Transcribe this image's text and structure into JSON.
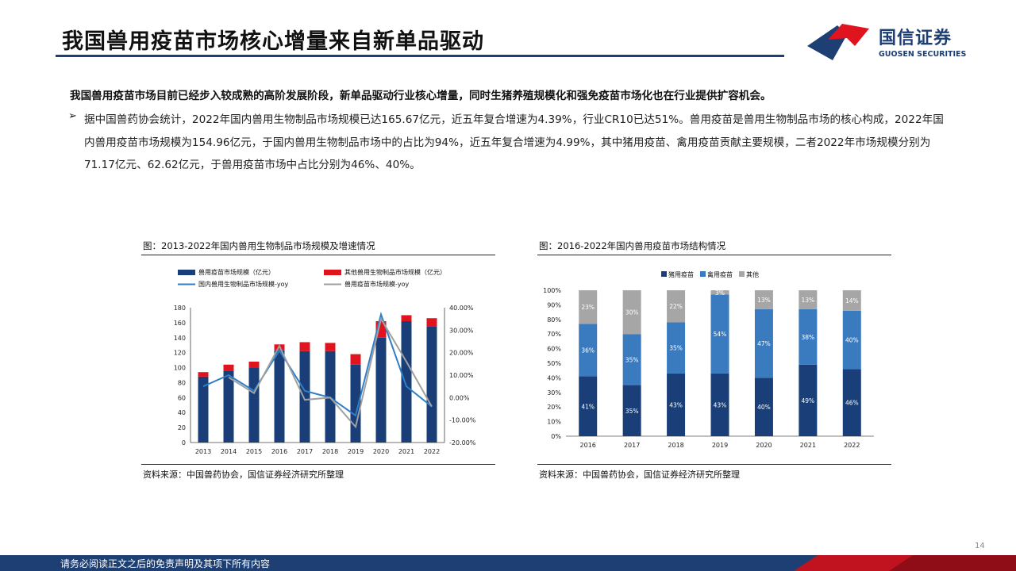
{
  "header": {
    "title": "我国兽用疫苗市场核心增量来自新单品驱动",
    "logo_cn": "国信证券",
    "logo_en": "GUOSEN SECURITIES"
  },
  "body": {
    "summary": "我国兽用疫苗市场目前已经步入较成熟的高阶发展阶段，新单品驱动行业核心增量，同时生猪养殖规模化和强免疫苗市场化也在行业提供扩容机会。",
    "bullet_mark": "➢",
    "bullet": "据中国兽药协会统计，2022年国内兽用生物制品市场规模已达165.67亿元，近五年复合增速为4.39%，行业CR10已达51%。兽用疫苗是兽用生物制品市场的核心构成，2022年国内兽用疫苗市场规模为154.96亿元，于国内兽用生物制品市场中的占比为94%，近五年复合增速为4.99%，其中猪用疫苗、禽用疫苗贡献主要规模，二者2022年市场规模分别为71.17亿元、62.62亿元，于兽用疫苗市场中占比分别为46%、40%。"
  },
  "figures": {
    "left_caption": "图：2013-2022年国内兽用生物制品市场规模及增速情况",
    "right_caption": "图：2016-2022年国内兽用疫苗市场结构情况",
    "left_source": "资料来源：中国兽药协会，国信证券经济研究所整理",
    "right_source": "资料来源：中国兽药协会，国信证券经济研究所整理"
  },
  "chart_data": [
    {
      "type": "bar",
      "stacked": true,
      "categories": [
        "2013",
        "2014",
        "2015",
        "2016",
        "2017",
        "2018",
        "2019",
        "2020",
        "2021",
        "2022"
      ],
      "series": [
        {
          "name": "兽用疫苗市场规模（亿元）",
          "kind": "bar",
          "axis": "left",
          "color": "#1a3f78",
          "values": [
            88,
            96,
            100,
            123,
            122,
            122,
            104,
            140,
            162,
            155
          ]
        },
        {
          "name": "其他兽用生物制品市场规模（亿元）",
          "kind": "bar",
          "axis": "left",
          "color": "#e0141e",
          "values": [
            6,
            8,
            8,
            8,
            12,
            11,
            14,
            22,
            8,
            11
          ]
        },
        {
          "name": "国内兽用生物制品市场规模-yoy",
          "kind": "line",
          "axis": "right",
          "color": "#2f7fc6",
          "values": [
            5,
            10,
            3,
            21,
            3,
            0,
            -8,
            37,
            5,
            -4
          ]
        },
        {
          "name": "兽用疫苗市场规模-yoy",
          "kind": "line",
          "axis": "right",
          "color": "#a0a0a0",
          "values": [
            null,
            9,
            2,
            23,
            -1,
            0,
            -13,
            35,
            16,
            -4
          ]
        }
      ],
      "ylim": [
        0,
        180
      ],
      "yticks": [
        "0",
        "20",
        "40",
        "60",
        "80",
        "100",
        "120",
        "140",
        "160",
        "180"
      ],
      "y2lim": [
        -20,
        40
      ],
      "y2ticks": [
        "-20.00%",
        "-10.00%",
        "0.00%",
        "10.00%",
        "20.00%",
        "30.00%",
        "40.00%"
      ],
      "legend": "top",
      "grid": false
    },
    {
      "type": "bar",
      "stacked": true,
      "percent": true,
      "categories": [
        "2016",
        "2017",
        "2018",
        "2019",
        "2020",
        "2021",
        "2022"
      ],
      "series": [
        {
          "name": "猪用疫苗",
          "color": "#1a3f78",
          "values": [
            41,
            35,
            43,
            43,
            40,
            49,
            46
          ]
        },
        {
          "name": "禽用疫苗",
          "color": "#3a7bc0",
          "values": [
            36,
            35,
            35,
            54,
            47,
            38,
            40
          ]
        },
        {
          "name": "其他",
          "color": "#a6a6a6",
          "values": [
            23,
            30,
            22,
            3,
            13,
            13,
            14
          ]
        }
      ],
      "ylim": [
        0,
        100
      ],
      "yticks": [
        "0%",
        "10%",
        "20%",
        "30%",
        "40%",
        "50%",
        "60%",
        "70%",
        "80%",
        "90%",
        "100%"
      ],
      "legend": "top",
      "grid": false
    }
  ],
  "footer": {
    "disclaimer": "请务必阅读正文之后的免责声明及其项下所有内容",
    "page": "14"
  }
}
